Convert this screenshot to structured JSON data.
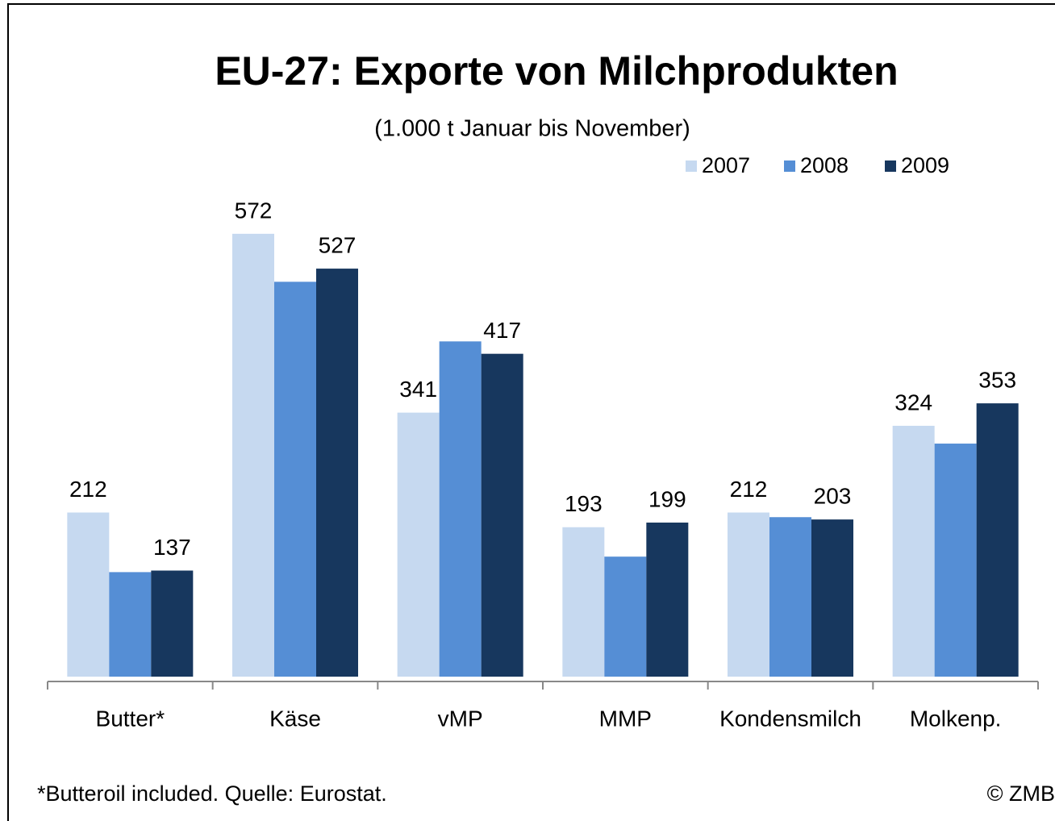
{
  "chart_data": {
    "type": "bar",
    "title": "EU-27: Exporte von Milchprodukten",
    "subtitle": "(1.000 t Januar bis November)",
    "categories": [
      "Butter*",
      "Käse",
      "vMP",
      "MMP",
      "Kondensmilch",
      "Molkenp."
    ],
    "series": [
      {
        "name": "2007",
        "color": "#c6d9f0",
        "values": [
          212,
          572,
          341,
          193,
          212,
          324
        ],
        "value_labels": [
          "212",
          "572",
          "341",
          "193",
          "212",
          "324"
        ]
      },
      {
        "name": "2008",
        "color": "#558ed5",
        "values": [
          135,
          510,
          433,
          155,
          206,
          301
        ],
        "value_labels": [
          null,
          null,
          null,
          null,
          null,
          null
        ]
      },
      {
        "name": "2009",
        "color": "#17375e",
        "values": [
          137,
          527,
          417,
          199,
          203,
          353
        ],
        "value_labels": [
          "137",
          "527",
          "417",
          "199",
          "203",
          "353"
        ]
      }
    ],
    "ylim": [
      0,
      600
    ],
    "legend": "top-right",
    "footnote": "*Butteroil included. Quelle: Eurostat.",
    "copyright": "© ZMB"
  }
}
